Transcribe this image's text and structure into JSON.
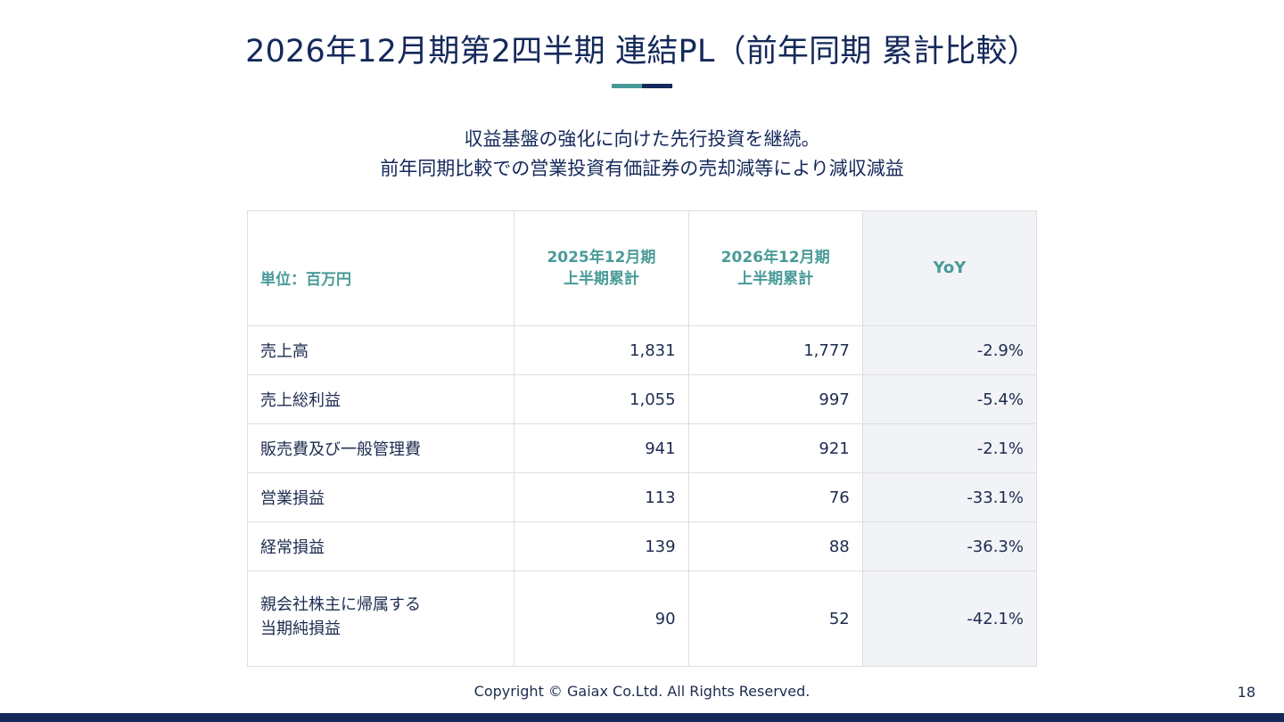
{
  "title": "2026年12月期第2四半期 連結PL（前年同期 累計比較）",
  "subtitle_line1": "収益基盤の強化に向けた先行投資を継続。",
  "subtitle_line2": "前年同期比較での営業投資有価証券の売却減等により減収減益",
  "colors": {
    "navy": "#14285a",
    "teal": "#4a9b98",
    "yoy_bg": "#f1f3f6"
  },
  "table": {
    "headers": {
      "unit": "単位：百万円",
      "prev_line1": "2025年12月期",
      "prev_line2": "上半期累計",
      "curr_line1": "2026年12月期",
      "curr_line2": "上半期累計",
      "yoy": "YoY"
    },
    "rows": [
      {
        "label": "売上高",
        "prev": "1,831",
        "curr": "1,777",
        "yoy": "-2.9%"
      },
      {
        "label": "売上総利益",
        "prev": "1,055",
        "curr": "997",
        "yoy": "-5.4%"
      },
      {
        "label": "販売費及び一般管理費",
        "prev": "941",
        "curr": "921",
        "yoy": "-2.1%"
      },
      {
        "label": "営業損益",
        "prev": "113",
        "curr": "76",
        "yoy": "-33.1%"
      },
      {
        "label": "経常損益",
        "prev": "139",
        "curr": "88",
        "yoy": "-36.3%"
      }
    ],
    "last_row": {
      "label_line1": "親会社株主に帰属する",
      "label_line2": "当期純損益",
      "prev": "90",
      "curr": "52",
      "yoy": "-42.1%"
    }
  },
  "footer": {
    "copyright": "Copyright © Gaiax Co.Ltd. All Rights Reserved.",
    "page_number": "18"
  }
}
